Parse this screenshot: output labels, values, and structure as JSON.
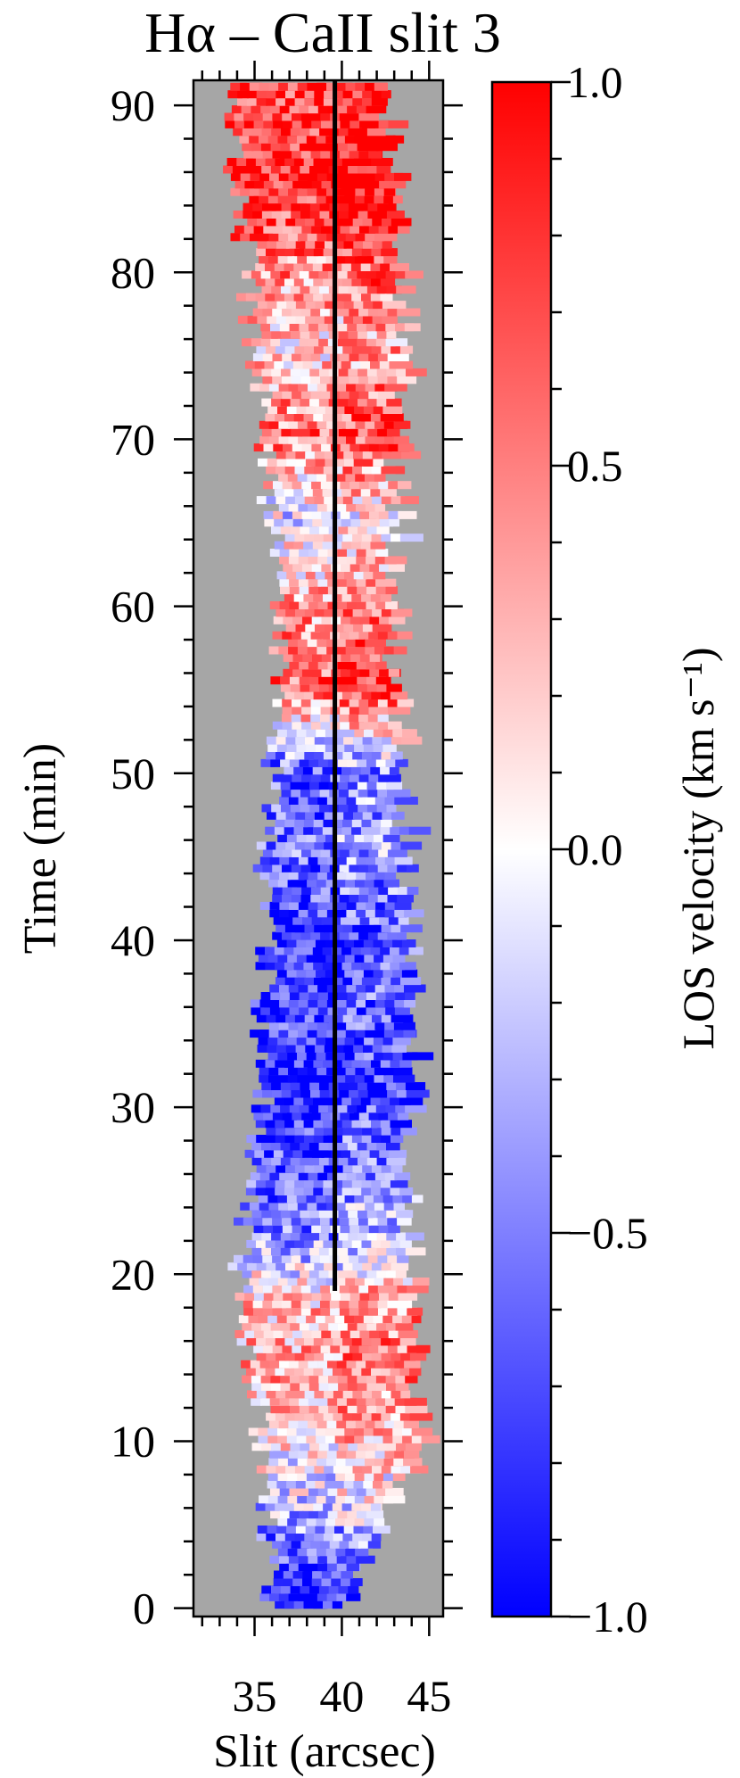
{
  "chart_data": {
    "type": "heatmap",
    "title": "Hα – CaII slit 3",
    "xlabel": "Slit   (arcsec)",
    "ylabel": "Time   (min)",
    "xlim": [
      31.5,
      45.8
    ],
    "ylim": [
      -0.5,
      91.5
    ],
    "x_ticks": [
      35,
      40,
      45
    ],
    "y_ticks": [
      0,
      10,
      20,
      30,
      40,
      50,
      60,
      70,
      80,
      90
    ],
    "background_color": "#a6a6a6",
    "colorbar": {
      "label": "LOS velocity   (km s⁻¹)",
      "range": [
        -1.0,
        1.0
      ],
      "ticks": [
        1.0,
        0.5,
        0.0,
        -0.5,
        -1.0
      ],
      "tick_labels": [
        "1.0",
        "0.5",
        "0.0",
        "−0.5",
        "−1.0"
      ],
      "low_color": "#0000ff",
      "mid_color": "#ffffff",
      "high_color": "#ff0000"
    },
    "reference_line": {
      "x": 39.6,
      "y_range": [
        19,
        91.5
      ],
      "color": "#000000"
    },
    "velocity_profile": [
      {
        "t": 0,
        "v": -0.9
      },
      {
        "t": 3,
        "v": -0.6
      },
      {
        "t": 6,
        "v": -0.2
      },
      {
        "t": 10,
        "v": 0.2
      },
      {
        "t": 14,
        "v": 0.4
      },
      {
        "t": 18,
        "v": 0.3
      },
      {
        "t": 22,
        "v": -0.4
      },
      {
        "t": 26,
        "v": -0.6
      },
      {
        "t": 31,
        "v": -0.9
      },
      {
        "t": 35,
        "v": -0.7
      },
      {
        "t": 40,
        "v": -0.8
      },
      {
        "t": 45,
        "v": -0.5
      },
      {
        "t": 50,
        "v": -0.6
      },
      {
        "t": 55,
        "v": 0.7
      },
      {
        "t": 60,
        "v": 0.4
      },
      {
        "t": 65,
        "v": -0.1
      },
      {
        "t": 70,
        "v": 0.6
      },
      {
        "t": 75,
        "v": 0.2
      },
      {
        "t": 80,
        "v": 0.5
      },
      {
        "t": 85,
        "v": 0.9
      },
      {
        "t": 91,
        "v": 0.8
      }
    ],
    "slit_extent": [
      {
        "t": 0,
        "x0": 36.0,
        "x1": 40.2
      },
      {
        "t": 10,
        "x0": 35.5,
        "x1": 44.0
      },
      {
        "t": 20,
        "x0": 34.0,
        "x1": 43.5
      },
      {
        "t": 30,
        "x0": 35.5,
        "x1": 43.5
      },
      {
        "t": 40,
        "x0": 35.5,
        "x1": 43.5
      },
      {
        "t": 50,
        "x0": 36.0,
        "x1": 43.0
      },
      {
        "t": 60,
        "x0": 36.5,
        "x1": 42.5
      },
      {
        "t": 70,
        "x0": 35.5,
        "x1": 43.0
      },
      {
        "t": 80,
        "x0": 34.5,
        "x1": 43.0
      },
      {
        "t": 91,
        "x0": 33.5,
        "x1": 42.0
      }
    ]
  }
}
